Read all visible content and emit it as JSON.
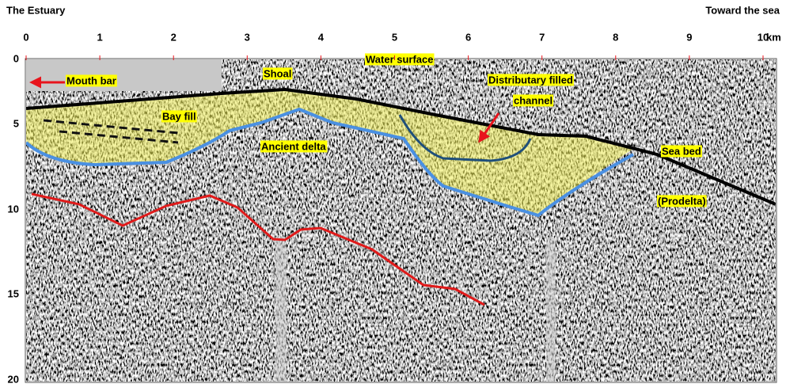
{
  "header": {
    "left": "The Estuary",
    "right": "Toward the sea"
  },
  "x_axis": {
    "ticks": [
      "0",
      "1",
      "2",
      "3",
      "4",
      "5",
      "6",
      "7",
      "8",
      "9",
      "10"
    ],
    "unit": "km"
  },
  "y_axis": {
    "ticks": [
      "0",
      "5",
      "10",
      "15",
      "20"
    ]
  },
  "labels": [
    "Mouth bar",
    "Shoal",
    "Water surface",
    "Distributary filled",
    "channel",
    "Bay fill",
    "Ancient delta",
    "Sea bed",
    "(Prodelta)"
  ]
}
